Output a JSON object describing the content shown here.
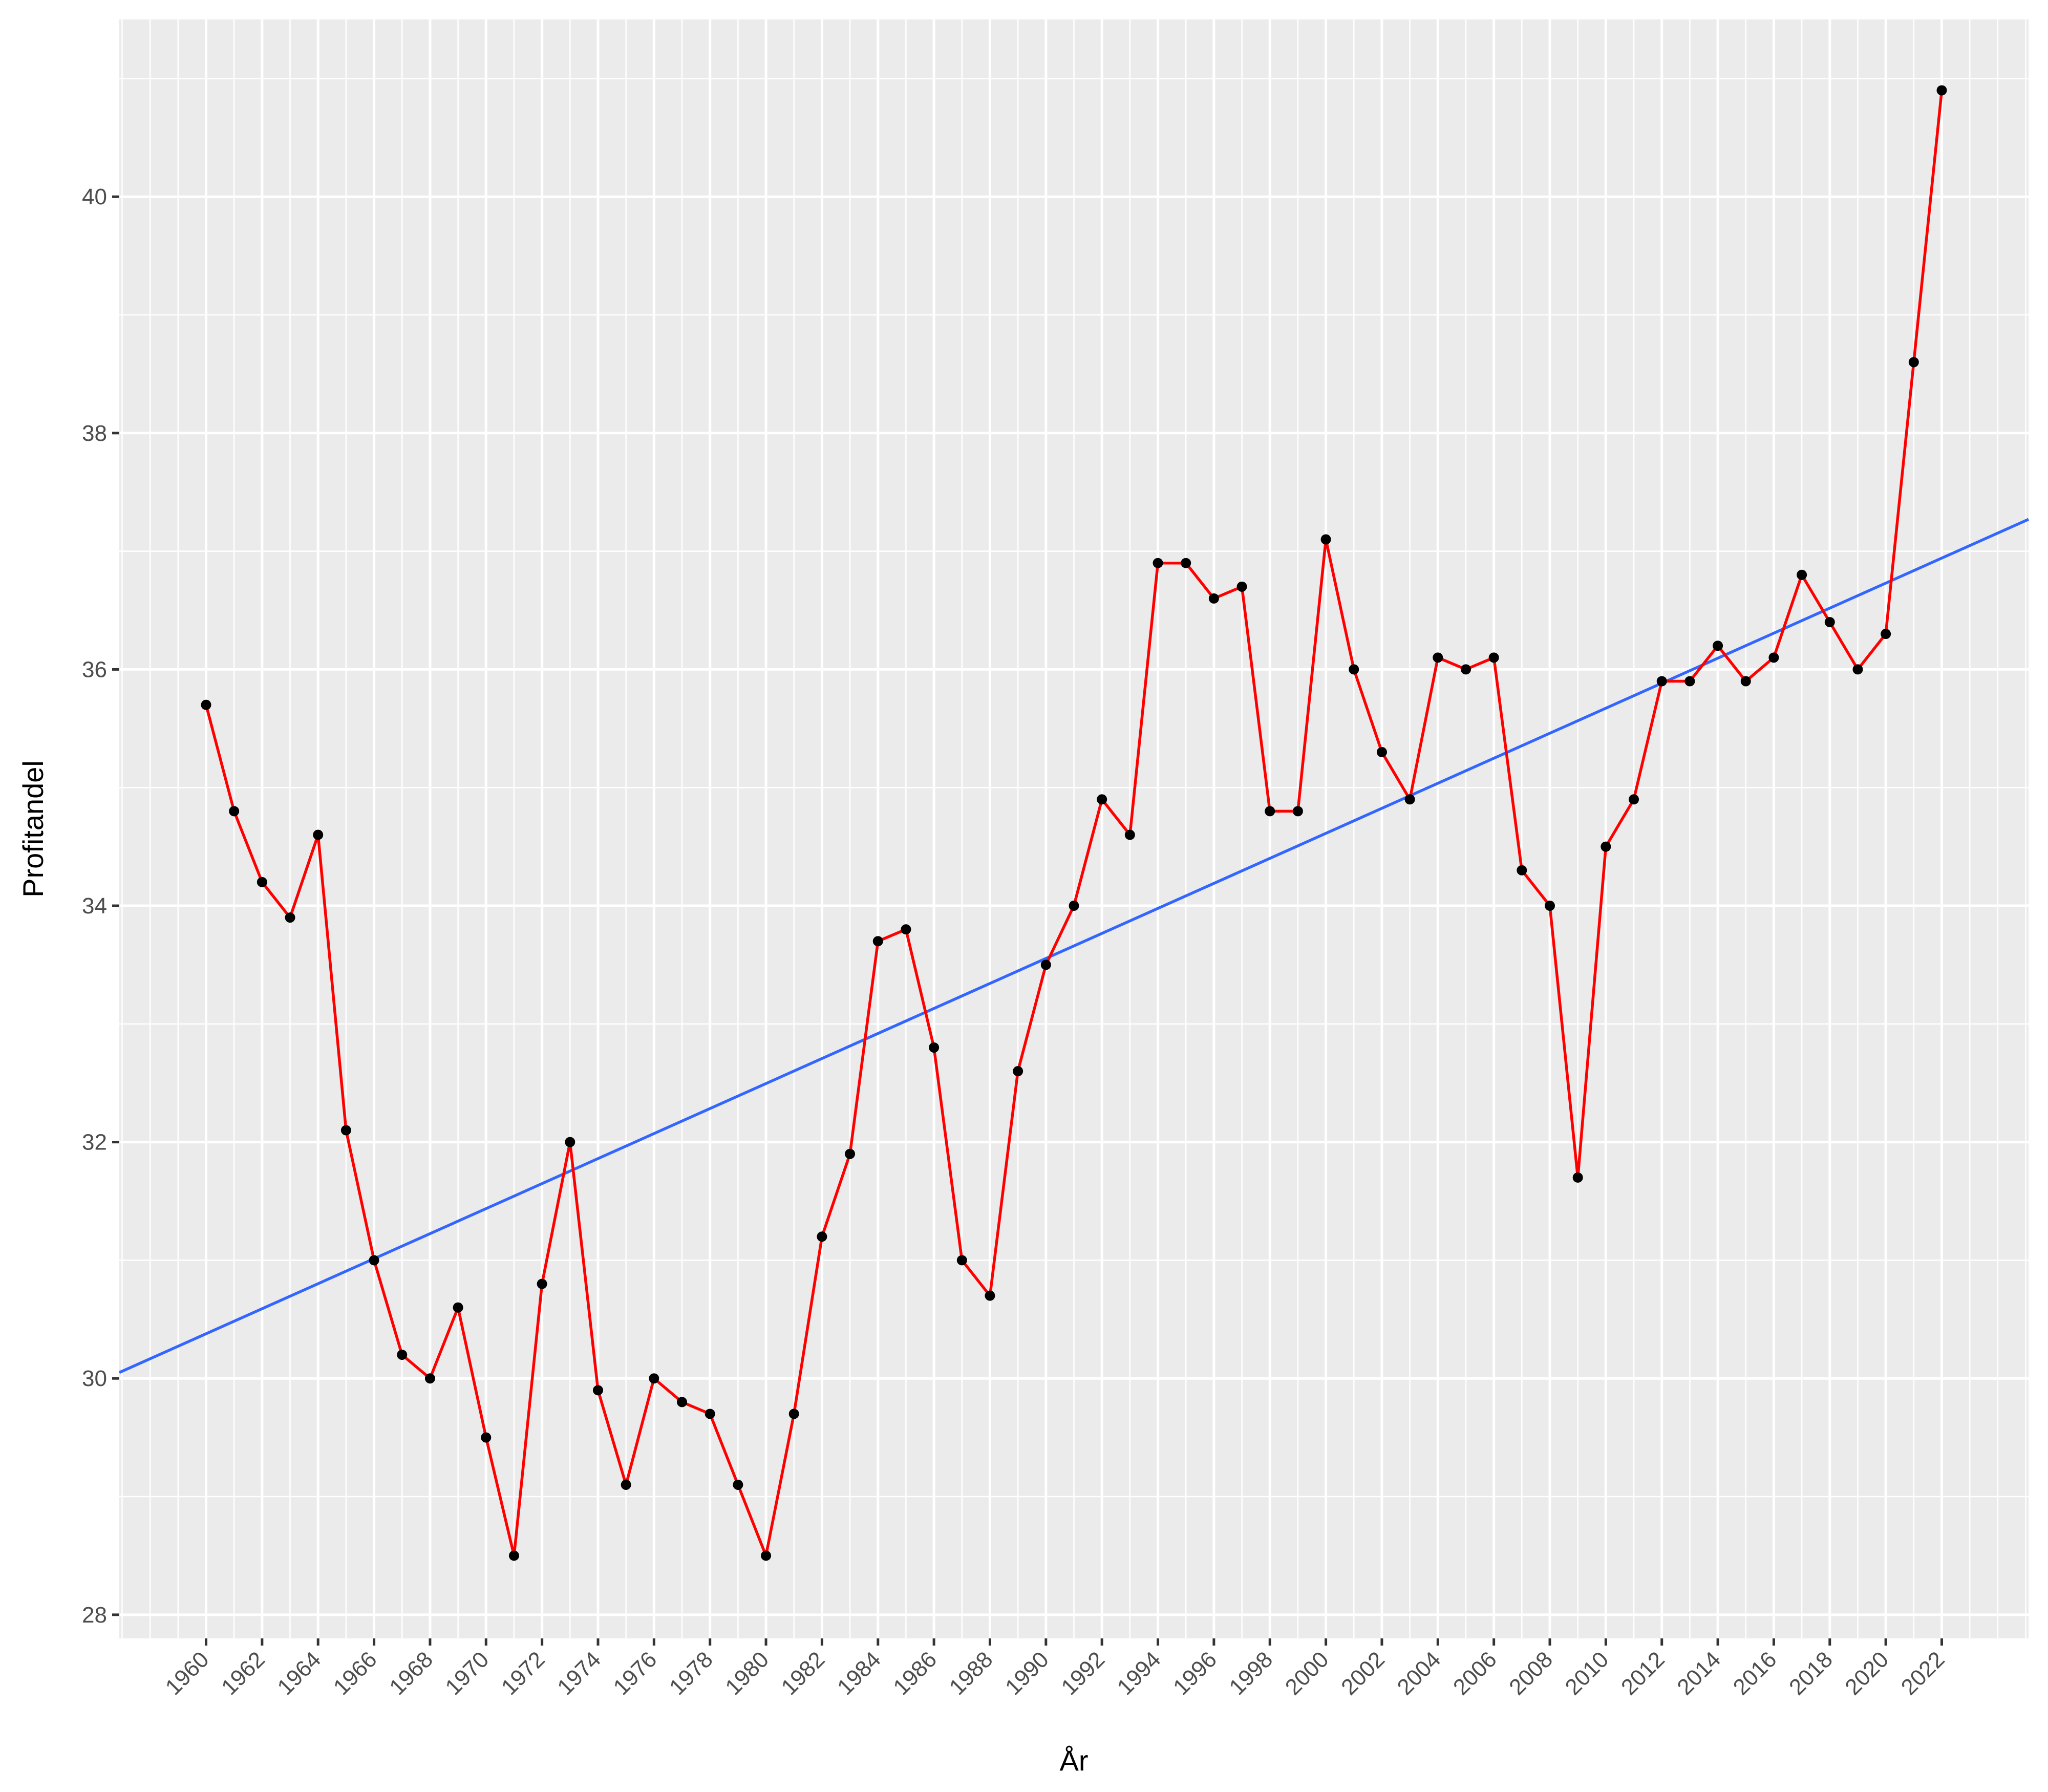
{
  "chart_data": {
    "type": "line",
    "title": "",
    "xlabel": "År",
    "ylabel": "Profitandel",
    "xlim": [
      1956.9,
      2025.1
    ],
    "ylim": [
      27.8,
      41.5
    ],
    "grid": true,
    "x_ticks": [
      "1960",
      "1962",
      "1964",
      "1966",
      "1968",
      "1970",
      "1972",
      "1974",
      "1976",
      "1978",
      "1980",
      "1982",
      "1984",
      "1986",
      "1988",
      "1990",
      "1992",
      "1994",
      "1996",
      "1998",
      "2000",
      "2002",
      "2004",
      "2006",
      "2008",
      "2010",
      "2012",
      "2014",
      "2016",
      "2018",
      "2020",
      "2022"
    ],
    "y_ticks": [
      "28",
      "30",
      "32",
      "34",
      "36",
      "38",
      "40"
    ],
    "x": [
      1960,
      1961,
      1962,
      1963,
      1964,
      1965,
      1966,
      1967,
      1968,
      1969,
      1970,
      1971,
      1972,
      1973,
      1974,
      1975,
      1976,
      1977,
      1978,
      1979,
      1980,
      1981,
      1982,
      1983,
      1984,
      1985,
      1986,
      1987,
      1988,
      1989,
      1990,
      1991,
      1992,
      1993,
      1994,
      1995,
      1996,
      1997,
      1998,
      1999,
      2000,
      2001,
      2002,
      2003,
      2004,
      2005,
      2006,
      2007,
      2008,
      2009,
      2010,
      2011,
      2012,
      2013,
      2014,
      2015,
      2016,
      2017,
      2018,
      2019,
      2020,
      2021,
      2022
    ],
    "series": [
      {
        "values": [
          35.7,
          34.8,
          34.2,
          33.9,
          34.6,
          32.1,
          31.0,
          30.2,
          30.0,
          30.6,
          29.5,
          28.5,
          30.8,
          32.0,
          29.9,
          29.1,
          30.0,
          29.8,
          29.7,
          29.1,
          28.5,
          29.7,
          31.2,
          31.9,
          33.7,
          33.8,
          32.8,
          31.0,
          30.7,
          32.6,
          33.5,
          34.0,
          34.9,
          34.6,
          36.9,
          36.9,
          36.6,
          36.7,
          34.8,
          34.8,
          37.1,
          36.0,
          35.3,
          34.9,
          36.1,
          36.0,
          36.1,
          34.3,
          34.0,
          31.7,
          34.5,
          34.9,
          35.9,
          35.9,
          36.2,
          35.9,
          36.1,
          36.8,
          36.4,
          36.0,
          36.3,
          38.6,
          40.9
        ],
        "color": "#ff0000"
      }
    ],
    "trend_line": {
      "x": [
        1956.9,
        2025.1
      ],
      "y": [
        30.05,
        37.27
      ],
      "color": "#3366ff"
    },
    "colors": {
      "panel": "#ebebeb",
      "grid_major": "#ffffff",
      "point": "#000000"
    }
  }
}
